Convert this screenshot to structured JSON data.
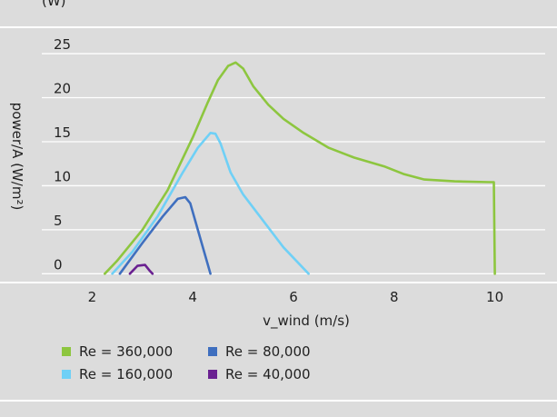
{
  "chart_data": {
    "type": "line",
    "title": "",
    "xlabel": "v_wind (m/s)",
    "ylabel": "power/A (W/m²)",
    "xlim": [
      1,
      11
    ],
    "ylim": [
      -1,
      28
    ],
    "x_ticks": [
      "2",
      "4",
      "6",
      "8",
      "10"
    ],
    "y_ticks": [
      "0",
      "5",
      "10",
      "15",
      "20",
      "25"
    ],
    "grid": true,
    "legend": "bottom",
    "series": [
      {
        "name": "Re = 360,000",
        "color": "#8dc63f",
        "points": [
          [
            2.25,
            0
          ],
          [
            2.5,
            1.5
          ],
          [
            3.0,
            5.0
          ],
          [
            3.5,
            9.5
          ],
          [
            4.0,
            15.5
          ],
          [
            4.3,
            19.5
          ],
          [
            4.5,
            22
          ],
          [
            4.7,
            23.6
          ],
          [
            4.85,
            24.0
          ],
          [
            5.0,
            23.3
          ],
          [
            5.2,
            21.3
          ],
          [
            5.5,
            19.2
          ],
          [
            5.8,
            17.6
          ],
          [
            6.2,
            16.0
          ],
          [
            6.7,
            14.3
          ],
          [
            7.2,
            13.2
          ],
          [
            7.8,
            12.2
          ],
          [
            8.2,
            11.3
          ],
          [
            8.6,
            10.7
          ],
          [
            9.2,
            10.5
          ],
          [
            9.9,
            10.4
          ],
          [
            9.98,
            10.4
          ],
          [
            10.0,
            0
          ]
        ]
      },
      {
        "name": "Re = 160,000",
        "color": "#6fd0f6",
        "points": [
          [
            2.4,
            0
          ],
          [
            2.8,
            2.5
          ],
          [
            3.3,
            6.5
          ],
          [
            3.8,
            11.5
          ],
          [
            4.1,
            14.3
          ],
          [
            4.35,
            16.0
          ],
          [
            4.45,
            15.9
          ],
          [
            4.55,
            14.8
          ],
          [
            4.75,
            11.5
          ],
          [
            5.0,
            9.0
          ],
          [
            5.4,
            6.0
          ],
          [
            5.8,
            3.0
          ],
          [
            6.3,
            0
          ]
        ]
      },
      {
        "name": "Re = 80,000",
        "color": "#3f6fbf",
        "points": [
          [
            2.55,
            0
          ],
          [
            3.0,
            3.5
          ],
          [
            3.4,
            6.5
          ],
          [
            3.7,
            8.5
          ],
          [
            3.85,
            8.7
          ],
          [
            3.95,
            8.0
          ],
          [
            4.15,
            4.0
          ],
          [
            4.35,
            0
          ]
        ]
      },
      {
        "name": "Re = 40,000",
        "color": "#6a2191",
        "points": [
          [
            2.75,
            0
          ],
          [
            2.9,
            0.9
          ],
          [
            3.05,
            1.0
          ],
          [
            3.15,
            0.3
          ],
          [
            3.2,
            0
          ]
        ]
      }
    ]
  },
  "top_fragment": "(W)"
}
